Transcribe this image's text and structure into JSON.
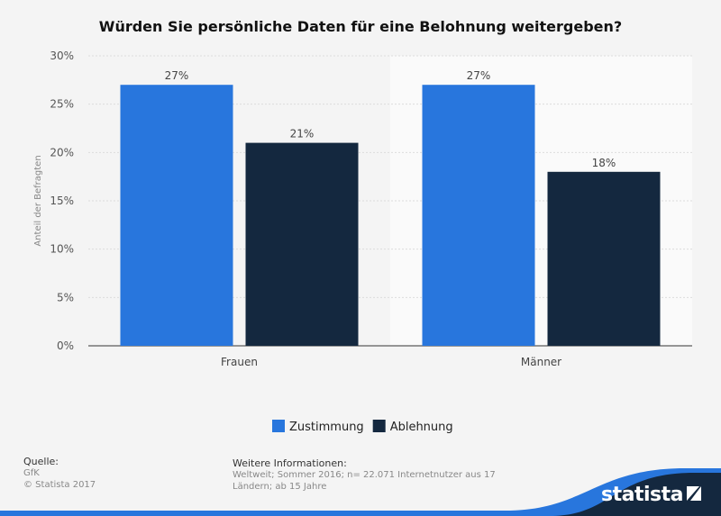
{
  "chart_data": {
    "type": "bar",
    "title": "Würden Sie persönliche Daten für eine Belohnung weitergeben?",
    "ylabel": "Anteil der Befragten",
    "xlabel": "",
    "categories": [
      "Frauen",
      "Männer"
    ],
    "series": [
      {
        "name": "Zustimmung",
        "values": [
          27,
          27
        ],
        "color": "#2876dd"
      },
      {
        "name": "Ablehnung",
        "values": [
          21,
          18
        ],
        "color": "#14283f"
      }
    ],
    "ylim": [
      0,
      30
    ],
    "yticks": [
      0,
      5,
      10,
      15,
      20,
      25,
      30
    ],
    "tick_suffix": "%",
    "grid": true,
    "legend": "bottom-center"
  },
  "footer": {
    "source_heading": "Quelle:",
    "source": "GfK",
    "copyright": "© Statista 2017",
    "info_heading": "Weitere Informationen:",
    "info_line1": "Weltweit; Sommer 2016; n= 22.071 Internetnutzer aus 17",
    "info_line2": "Ländern; ab 15 Jahre"
  },
  "logo": "statista"
}
